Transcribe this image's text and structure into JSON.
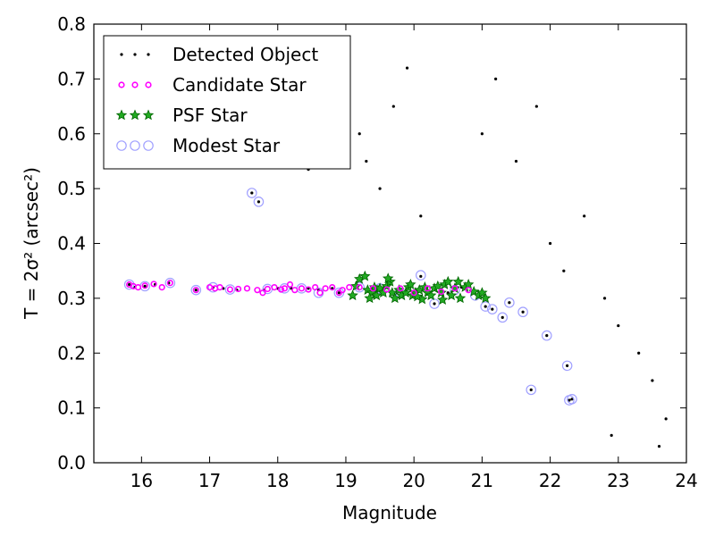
{
  "chart_data": {
    "type": "scatter",
    "xlabel": "Magnitude",
    "ylabel": "T = 2σ² (arcsec²)",
    "xlim": [
      15.3,
      24
    ],
    "ylim": [
      0,
      0.8
    ],
    "xticks": [
      16,
      17,
      18,
      19,
      20,
      21,
      22,
      23,
      24
    ],
    "yticks": [
      0.0,
      0.1,
      0.2,
      0.3,
      0.4,
      0.5,
      0.6,
      0.7,
      0.8
    ],
    "xtick_labels": [
      "16",
      "17",
      "18",
      "19",
      "20",
      "21",
      "22",
      "23",
      "24"
    ],
    "ytick_labels": [
      "0.0",
      "0.1",
      "0.2",
      "0.3",
      "0.4",
      "0.5",
      "0.6",
      "0.7",
      "0.8"
    ],
    "grid": false,
    "legend_position": "upper-left",
    "colors": {
      "detected": "#000000",
      "candidate": "#ff00ff",
      "psf_fill": "#22aa22",
      "psf_edge": "#006400",
      "modest": "#a0a0ff"
    },
    "series": [
      {
        "name": "Detected Object",
        "marker": "dot",
        "points": [
          [
            15.82,
            0.325
          ],
          [
            15.9,
            0.32
          ],
          [
            16.05,
            0.322
          ],
          [
            16.2,
            0.325
          ],
          [
            16.4,
            0.328
          ],
          [
            16.8,
            0.315
          ],
          [
            17.05,
            0.32
          ],
          [
            17.2,
            0.318
          ],
          [
            17.4,
            0.315
          ],
          [
            17.62,
            0.492
          ],
          [
            17.72,
            0.476
          ],
          [
            17.8,
            0.315
          ],
          [
            18.0,
            0.318
          ],
          [
            18.2,
            0.318
          ],
          [
            18.45,
            0.318
          ],
          [
            18.6,
            0.315
          ],
          [
            18.8,
            0.318
          ],
          [
            18.9,
            0.31
          ],
          [
            18.45,
            0.535
          ],
          [
            18.9,
            0.594
          ],
          [
            19.3,
            0.55
          ],
          [
            19.2,
            0.6
          ],
          [
            19.5,
            0.5
          ],
          [
            19.7,
            0.65
          ],
          [
            19.9,
            0.72
          ],
          [
            20.1,
            0.45
          ],
          [
            20.1,
            0.34
          ],
          [
            20.3,
            0.29
          ],
          [
            20.5,
            0.31
          ],
          [
            20.7,
            0.32
          ],
          [
            21.05,
            0.285
          ],
          [
            21.15,
            0.28
          ],
          [
            21.3,
            0.265
          ],
          [
            21.4,
            0.292
          ],
          [
            21.6,
            0.275
          ],
          [
            21.95,
            0.232
          ],
          [
            21.72,
            0.133
          ],
          [
            22.25,
            0.177
          ],
          [
            22.28,
            0.114
          ],
          [
            22.32,
            0.116
          ],
          [
            21.0,
            0.6
          ],
          [
            21.2,
            0.7
          ],
          [
            21.5,
            0.55
          ],
          [
            21.8,
            0.65
          ],
          [
            22.0,
            0.4
          ],
          [
            22.2,
            0.35
          ],
          [
            22.5,
            0.45
          ],
          [
            22.8,
            0.3
          ],
          [
            23.0,
            0.25
          ],
          [
            23.3,
            0.2
          ],
          [
            23.5,
            0.15
          ],
          [
            23.7,
            0.08
          ],
          [
            22.9,
            0.05
          ],
          [
            23.6,
            0.03
          ]
        ]
      },
      {
        "name": "Candidate Star",
        "marker": "circle-small",
        "points": [
          [
            15.82,
            0.325
          ],
          [
            15.88,
            0.322
          ],
          [
            15.95,
            0.32
          ],
          [
            16.05,
            0.323
          ],
          [
            16.18,
            0.326
          ],
          [
            16.3,
            0.32
          ],
          [
            16.42,
            0.328
          ],
          [
            16.8,
            0.315
          ],
          [
            17.0,
            0.32
          ],
          [
            17.08,
            0.318
          ],
          [
            17.15,
            0.32
          ],
          [
            17.3,
            0.316
          ],
          [
            17.42,
            0.317
          ],
          [
            17.55,
            0.318
          ],
          [
            17.7,
            0.315
          ],
          [
            17.78,
            0.31
          ],
          [
            17.85,
            0.317
          ],
          [
            17.95,
            0.32
          ],
          [
            18.05,
            0.316
          ],
          [
            18.1,
            0.318
          ],
          [
            18.18,
            0.325
          ],
          [
            18.25,
            0.315
          ],
          [
            18.35,
            0.318
          ],
          [
            18.45,
            0.316
          ],
          [
            18.55,
            0.32
          ],
          [
            18.62,
            0.31
          ],
          [
            18.7,
            0.318
          ],
          [
            18.8,
            0.32
          ],
          [
            18.9,
            0.31
          ],
          [
            18.95,
            0.315
          ],
          [
            19.05,
            0.32
          ],
          [
            19.2,
            0.32
          ],
          [
            19.4,
            0.318
          ],
          [
            19.6,
            0.316
          ],
          [
            19.8,
            0.318
          ],
          [
            20.0,
            0.31
          ],
          [
            20.2,
            0.318
          ],
          [
            20.4,
            0.312
          ],
          [
            20.6,
            0.318
          ],
          [
            20.8,
            0.315
          ]
        ]
      },
      {
        "name": "PSF Star",
        "marker": "star",
        "points": [
          [
            19.1,
            0.305
          ],
          [
            19.15,
            0.322
          ],
          [
            19.2,
            0.335
          ],
          [
            19.28,
            0.34
          ],
          [
            19.32,
            0.315
          ],
          [
            19.38,
            0.31
          ],
          [
            19.42,
            0.32
          ],
          [
            19.45,
            0.305
          ],
          [
            19.5,
            0.318
          ],
          [
            19.55,
            0.31
          ],
          [
            19.6,
            0.322
          ],
          [
            19.65,
            0.33
          ],
          [
            19.68,
            0.31
          ],
          [
            19.72,
            0.3
          ],
          [
            19.78,
            0.315
          ],
          [
            19.82,
            0.305
          ],
          [
            19.88,
            0.31
          ],
          [
            19.92,
            0.32
          ],
          [
            19.98,
            0.305
          ],
          [
            20.02,
            0.31
          ],
          [
            20.08,
            0.315
          ],
          [
            20.12,
            0.298
          ],
          [
            20.16,
            0.32
          ],
          [
            20.2,
            0.31
          ],
          [
            20.25,
            0.305
          ],
          [
            20.3,
            0.318
          ],
          [
            20.35,
            0.322
          ],
          [
            20.4,
            0.31
          ],
          [
            20.45,
            0.325
          ],
          [
            20.5,
            0.33
          ],
          [
            20.55,
            0.305
          ],
          [
            20.6,
            0.318
          ],
          [
            20.68,
            0.3
          ],
          [
            20.75,
            0.32
          ],
          [
            20.8,
            0.325
          ],
          [
            20.88,
            0.312
          ],
          [
            20.95,
            0.305
          ],
          [
            21.0,
            0.31
          ],
          [
            21.05,
            0.3
          ],
          [
            19.35,
            0.3
          ],
          [
            19.95,
            0.325
          ],
          [
            20.05,
            0.303
          ],
          [
            19.62,
            0.336
          ],
          [
            20.42,
            0.297
          ],
          [
            20.65,
            0.33
          ]
        ]
      },
      {
        "name": "Modest Star",
        "marker": "circle-open",
        "points": [
          [
            15.82,
            0.325
          ],
          [
            16.05,
            0.322
          ],
          [
            16.42,
            0.328
          ],
          [
            16.8,
            0.315
          ],
          [
            17.05,
            0.32
          ],
          [
            17.3,
            0.316
          ],
          [
            17.62,
            0.492
          ],
          [
            17.72,
            0.476
          ],
          [
            17.85,
            0.317
          ],
          [
            18.1,
            0.318
          ],
          [
            18.35,
            0.318
          ],
          [
            18.6,
            0.31
          ],
          [
            18.9,
            0.31
          ],
          [
            19.2,
            0.32
          ],
          [
            19.5,
            0.318
          ],
          [
            19.8,
            0.31
          ],
          [
            20.1,
            0.342
          ],
          [
            20.3,
            0.29
          ],
          [
            20.6,
            0.315
          ],
          [
            20.9,
            0.305
          ],
          [
            21.05,
            0.285
          ],
          [
            21.15,
            0.28
          ],
          [
            21.3,
            0.265
          ],
          [
            21.4,
            0.292
          ],
          [
            21.6,
            0.275
          ],
          [
            21.95,
            0.232
          ],
          [
            21.72,
            0.133
          ],
          [
            22.25,
            0.177
          ],
          [
            22.28,
            0.114
          ],
          [
            22.32,
            0.116
          ]
        ]
      }
    ]
  }
}
